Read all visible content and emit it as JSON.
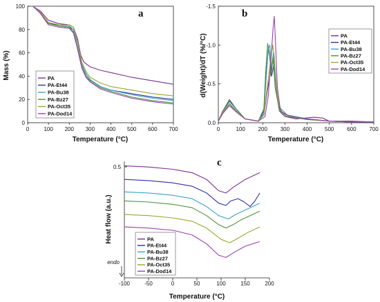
{
  "colors": {
    "PA": "#7a2f8f",
    "PA-Et44": "#2b2fa8",
    "PA-Bu38": "#3aa3c7",
    "PA-Bz27": "#4f8f3a",
    "PA-Oct35": "#9aa62a",
    "PA-Dod14": "#9b3fb0"
  },
  "chart_data": [
    {
      "id": "a",
      "type": "line",
      "panel_label": "a",
      "xlabel": "Temperature (°C)",
      "ylabel": "Mass (%)",
      "xlim": [
        0,
        700
      ],
      "ylim": [
        0,
        100
      ],
      "xticks": [
        "0",
        "100",
        "200",
        "300",
        "400",
        "500",
        "600",
        "700"
      ],
      "yticks": [
        "0",
        "20",
        "40",
        "60",
        "80",
        "100"
      ],
      "legend": [
        "PA",
        "PA-Et44",
        "PA-Bu38",
        "PA-Bz27",
        "PA-Oct35",
        "PA-Dod14"
      ],
      "legend_position": "bottom-left",
      "series": [
        {
          "name": "PA",
          "x": [
            25,
            60,
            100,
            150,
            200,
            220,
            240,
            255,
            270,
            300,
            350,
            400,
            500,
            600,
            700
          ],
          "y": [
            100,
            96,
            88,
            85,
            84,
            82,
            72,
            58,
            52,
            48,
            45,
            43,
            39,
            36,
            33
          ]
        },
        {
          "name": "PA-Et44",
          "x": [
            25,
            60,
            100,
            150,
            200,
            220,
            240,
            260,
            280,
            300,
            350,
            400,
            500,
            600,
            700
          ],
          "y": [
            100,
            95,
            86,
            83,
            82,
            80,
            68,
            50,
            42,
            37,
            31,
            28,
            25,
            22,
            20
          ]
        },
        {
          "name": "PA-Bu38",
          "x": [
            25,
            60,
            100,
            150,
            200,
            220,
            240,
            260,
            280,
            300,
            350,
            400,
            500,
            600,
            700
          ],
          "y": [
            100,
            95,
            86,
            84,
            83,
            80,
            68,
            50,
            42,
            37,
            31,
            28,
            24,
            21,
            19
          ]
        },
        {
          "name": "PA-Bz27",
          "x": [
            25,
            60,
            100,
            150,
            200,
            220,
            240,
            260,
            280,
            300,
            350,
            400,
            500,
            600,
            700
          ],
          "y": [
            100,
            95,
            85,
            83,
            82,
            78,
            64,
            48,
            40,
            36,
            30,
            27,
            22,
            19,
            17
          ]
        },
        {
          "name": "PA-Oct35",
          "x": [
            25,
            60,
            100,
            150,
            200,
            220,
            240,
            260,
            280,
            300,
            350,
            400,
            500,
            600,
            700
          ],
          "y": [
            100,
            95,
            86,
            84,
            84,
            82,
            70,
            52,
            44,
            39,
            34,
            31,
            28,
            25,
            23
          ]
        },
        {
          "name": "PA-Dod14",
          "x": [
            25,
            60,
            100,
            150,
            200,
            220,
            240,
            260,
            280,
            300,
            350,
            400,
            500,
            600,
            700
          ],
          "y": [
            100,
            94,
            84,
            82,
            81,
            77,
            63,
            47,
            39,
            35,
            29,
            26,
            21,
            18,
            16
          ]
        }
      ]
    },
    {
      "id": "b",
      "type": "line",
      "panel_label": "b",
      "xlabel": "Temperature (°C)",
      "ylabel": "d(Weight)/dT (%/°C)",
      "xlim": [
        0,
        700
      ],
      "ylim": [
        0,
        -1.5
      ],
      "xticks": [
        "0",
        "100",
        "200",
        "300",
        "400",
        "500",
        "600",
        "700"
      ],
      "yticks": [
        "0.0",
        "-0.5",
        "-1.0",
        "-1.5"
      ],
      "legend": [
        "PA",
        "PA-Et44",
        "PA-Bu38",
        "PA-Bz27",
        "PA-Oct35",
        "PA-Dod14"
      ],
      "legend_position": "top-right",
      "series": [
        {
          "name": "PA",
          "x": [
            0,
            20,
            50,
            80,
            120,
            180,
            205,
            220,
            235,
            245,
            255,
            265,
            275,
            300,
            350,
            430,
            470,
            500,
            600,
            700
          ],
          "y": [
            -0.02,
            -0.12,
            -0.22,
            -0.15,
            -0.05,
            -0.02,
            -0.1,
            -0.4,
            -0.65,
            -0.8,
            -0.7,
            -0.35,
            -0.15,
            -0.08,
            -0.05,
            -0.07,
            -0.06,
            -0.02,
            -0.02,
            -0.01
          ]
        },
        {
          "name": "PA-Et44",
          "x": [
            0,
            20,
            50,
            80,
            120,
            180,
            205,
            215,
            225,
            232,
            240,
            250,
            262,
            280,
            310,
            400,
            500,
            600,
            700
          ],
          "y": [
            -0.02,
            -0.15,
            -0.28,
            -0.18,
            -0.05,
            -0.02,
            -0.15,
            -0.6,
            -0.95,
            -0.85,
            -0.6,
            -0.75,
            -0.4,
            -0.15,
            -0.1,
            -0.05,
            -0.02,
            -0.01,
            -0.01
          ]
        },
        {
          "name": "PA-Bu38",
          "x": [
            0,
            20,
            50,
            80,
            120,
            180,
            205,
            215,
            225,
            232,
            240,
            248,
            258,
            275,
            310,
            400,
            500,
            600,
            700
          ],
          "y": [
            -0.02,
            -0.14,
            -0.25,
            -0.16,
            -0.05,
            -0.02,
            -0.12,
            -0.55,
            -0.95,
            -1.0,
            -0.7,
            -0.9,
            -0.5,
            -0.2,
            -0.1,
            -0.05,
            -0.02,
            -0.01,
            -0.01
          ]
        },
        {
          "name": "PA-Bz27",
          "x": [
            0,
            20,
            50,
            80,
            120,
            180,
            205,
            213,
            222,
            230,
            238,
            246,
            256,
            275,
            310,
            400,
            500,
            600,
            700
          ],
          "y": [
            -0.02,
            -0.15,
            -0.3,
            -0.18,
            -0.05,
            -0.02,
            -0.18,
            -0.65,
            -1.02,
            -0.9,
            -0.6,
            -0.85,
            -0.45,
            -0.15,
            -0.08,
            -0.04,
            -0.02,
            -0.01,
            -0.01
          ]
        },
        {
          "name": "PA-Oct35",
          "x": [
            0,
            20,
            50,
            80,
            120,
            180,
            205,
            220,
            235,
            245,
            252,
            260,
            270,
            290,
            330,
            400,
            500,
            600,
            700
          ],
          "y": [
            -0.02,
            -0.13,
            -0.24,
            -0.15,
            -0.05,
            -0.02,
            -0.1,
            -0.45,
            -0.8,
            -1.0,
            -0.85,
            -0.5,
            -0.25,
            -0.12,
            -0.08,
            -0.05,
            -0.02,
            -0.01,
            -0.01
          ]
        },
        {
          "name": "PA-Dod14",
          "x": [
            0,
            20,
            50,
            80,
            120,
            180,
            210,
            225,
            238,
            246,
            252,
            258,
            266,
            280,
            320,
            400,
            500,
            600,
            700
          ],
          "y": [
            -0.02,
            -0.12,
            -0.22,
            -0.14,
            -0.05,
            -0.02,
            -0.08,
            -0.35,
            -0.85,
            -1.2,
            -1.37,
            -1.0,
            -0.45,
            -0.15,
            -0.08,
            -0.05,
            -0.02,
            -0.01,
            -0.01
          ]
        }
      ]
    },
    {
      "id": "c",
      "type": "line",
      "panel_label": "c",
      "xlabel": "Temperature (°C)",
      "ylabel": "Heat flow (a.u.)",
      "xlim": [
        -100,
        200
      ],
      "ylim": [
        0,
        1
      ],
      "xticks": [
        "-100",
        "-50",
        "0",
        "50",
        "100",
        "150",
        "200"
      ],
      "y_marker": "0.5",
      "annotation": "endo",
      "legend": [
        "PA",
        "PA-Et44",
        "PA-Bu38",
        "PA-Bz27",
        "PA-Oct35",
        "PA-Dod14"
      ],
      "legend_position": "bottom-left",
      "series": [
        {
          "name": "PA",
          "x": [
            -100,
            -50,
            0,
            40,
            70,
            95,
            110,
            125,
            150,
            180
          ],
          "y": [
            0.96,
            0.95,
            0.93,
            0.9,
            0.84,
            0.74,
            0.72,
            0.77,
            0.84,
            0.9
          ]
        },
        {
          "name": "PA-Et44",
          "x": [
            -100,
            -50,
            0,
            40,
            70,
            95,
            110,
            120,
            135,
            148,
            160,
            170,
            180
          ],
          "y": [
            0.84,
            0.83,
            0.81,
            0.78,
            0.72,
            0.63,
            0.61,
            0.65,
            0.67,
            0.64,
            0.6,
            0.65,
            0.72
          ]
        },
        {
          "name": "PA-Bu38",
          "x": [
            -100,
            -50,
            0,
            40,
            70,
            95,
            115,
            130,
            145,
            160,
            180
          ],
          "y": [
            0.73,
            0.72,
            0.7,
            0.67,
            0.6,
            0.52,
            0.49,
            0.53,
            0.56,
            0.59,
            0.63
          ]
        },
        {
          "name": "PA-Bz27",
          "x": [
            -100,
            -50,
            0,
            40,
            70,
            95,
            110,
            125,
            140,
            160,
            180
          ],
          "y": [
            0.65,
            0.64,
            0.62,
            0.59,
            0.52,
            0.44,
            0.41,
            0.44,
            0.48,
            0.52,
            0.56
          ]
        },
        {
          "name": "PA-Oct35",
          "x": [
            -100,
            -50,
            0,
            40,
            70,
            100,
            118,
            135,
            155,
            180
          ],
          "y": [
            0.53,
            0.52,
            0.5,
            0.47,
            0.41,
            0.31,
            0.28,
            0.32,
            0.37,
            0.42
          ]
        },
        {
          "name": "PA-Dod14",
          "x": [
            -100,
            -50,
            0,
            40,
            70,
            95,
            110,
            125,
            150,
            180
          ],
          "y": [
            0.42,
            0.41,
            0.39,
            0.35,
            0.27,
            0.17,
            0.15,
            0.19,
            0.25,
            0.29
          ]
        }
      ]
    }
  ]
}
